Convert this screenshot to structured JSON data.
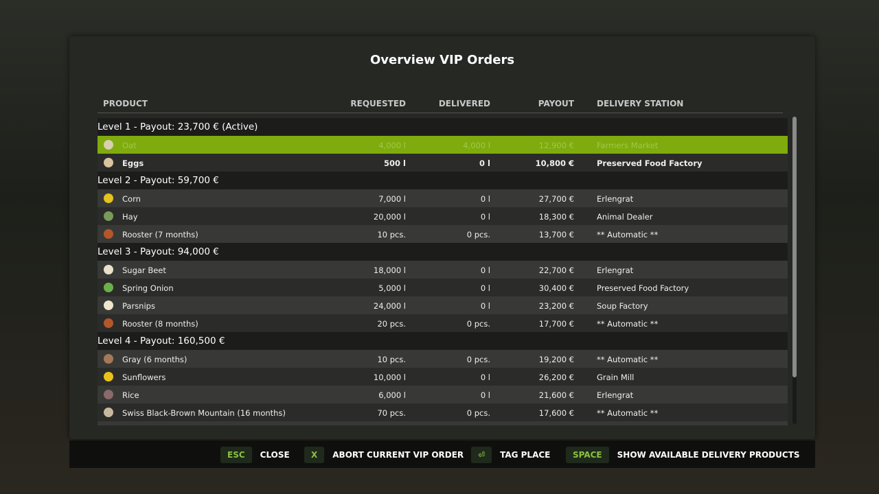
{
  "title": "Overview VIP Orders",
  "columns": {
    "product": "PRODUCT",
    "requested": "REQUESTED",
    "delivered": "DELIVERED",
    "payout": "PAYOUT",
    "station": "DELIVERY STATION"
  },
  "rows": [
    {
      "type": "level",
      "label": "Level 1 - Payout: 23,700 € (Active)"
    },
    {
      "type": "item",
      "style": "active",
      "icon": "oat-icon",
      "color": "#d8d0b0",
      "product": "Oat",
      "requested": "4,000 l",
      "delivered": "4,000 l",
      "payout": "12,900 €",
      "station": "Farmers Market"
    },
    {
      "type": "item",
      "style": "bold",
      "icon": "eggs-icon",
      "color": "#d9c3a0",
      "product": "Eggs",
      "requested": "500 l",
      "delivered": "0 l",
      "payout": "10,800 €",
      "station": "Preserved Food Factory"
    },
    {
      "type": "level",
      "label": "Level 2 - Payout: 59,700 €"
    },
    {
      "type": "item",
      "icon": "corn-icon",
      "color": "#e5c21e",
      "product": "Corn",
      "requested": "7,000 l",
      "delivered": "0 l",
      "payout": "27,700 €",
      "station": "Erlengrat"
    },
    {
      "type": "item",
      "icon": "hay-icon",
      "color": "#7a9a5a",
      "product": "Hay",
      "requested": "20,000 l",
      "delivered": "0 l",
      "payout": "18,300 €",
      "station": "Animal Dealer"
    },
    {
      "type": "item",
      "icon": "rooster-icon",
      "color": "#b5562a",
      "product": "Rooster (7 months)",
      "requested": "10 pcs.",
      "delivered": "0 pcs.",
      "payout": "13,700 €",
      "station": "** Automatic **"
    },
    {
      "type": "level",
      "label": "Level 3 - Payout: 94,000 €"
    },
    {
      "type": "item",
      "icon": "sugar-beet-icon",
      "color": "#e8e0c8",
      "product": "Sugar Beet",
      "requested": "18,000 l",
      "delivered": "0 l",
      "payout": "22,700 €",
      "station": "Erlengrat"
    },
    {
      "type": "item",
      "icon": "spring-onion-icon",
      "color": "#6ab04a",
      "product": "Spring Onion",
      "requested": "5,000 l",
      "delivered": "0 l",
      "payout": "30,400 €",
      "station": "Preserved Food Factory"
    },
    {
      "type": "item",
      "icon": "parsnip-icon",
      "color": "#efe6cc",
      "product": "Parsnips",
      "requested": "24,000 l",
      "delivered": "0 l",
      "payout": "23,200 €",
      "station": "Soup Factory"
    },
    {
      "type": "item",
      "icon": "rooster-icon",
      "color": "#b5562a",
      "product": "Rooster (8 months)",
      "requested": "20 pcs.",
      "delivered": "0 pcs.",
      "payout": "17,700 €",
      "station": "** Automatic **"
    },
    {
      "type": "level",
      "label": "Level 4 - Payout: 160,500 €"
    },
    {
      "type": "item",
      "icon": "goat-icon",
      "color": "#a5785a",
      "product": "Gray (6 months)",
      "requested": "10 pcs.",
      "delivered": "0 pcs.",
      "payout": "19,200 €",
      "station": "** Automatic **"
    },
    {
      "type": "item",
      "icon": "sunflower-icon",
      "color": "#e8c21a",
      "product": "Sunflowers",
      "requested": "10,000 l",
      "delivered": "0 l",
      "payout": "26,200 €",
      "station": "Grain Mill"
    },
    {
      "type": "item",
      "icon": "rice-icon",
      "color": "#8a6a6a",
      "product": "Rice",
      "requested": "6,000 l",
      "delivered": "0 l",
      "payout": "21,600 €",
      "station": "Erlengrat"
    },
    {
      "type": "item",
      "icon": "sheep-icon",
      "color": "#c8b8a0",
      "product": "Swiss Black-Brown Mountain (16 months)",
      "requested": "70 pcs.",
      "delivered": "0 pcs.",
      "payout": "17,600 €",
      "station": "** Automatic **"
    },
    {
      "type": "item",
      "icon": "",
      "color": "#444",
      "product": "",
      "requested": "",
      "delivered": "",
      "payout": "",
      "station": ""
    }
  ],
  "footer": [
    {
      "key": "ESC",
      "label": "CLOSE"
    },
    {
      "key": "X",
      "label": "ABORT CURRENT VIP ORDER"
    },
    {
      "key": "⏎",
      "label": "TAG PLACE",
      "icon": "tag-place-icon"
    },
    {
      "key": "SPACE",
      "label": "SHOW AVAILABLE DELIVERY PRODUCTS"
    }
  ]
}
